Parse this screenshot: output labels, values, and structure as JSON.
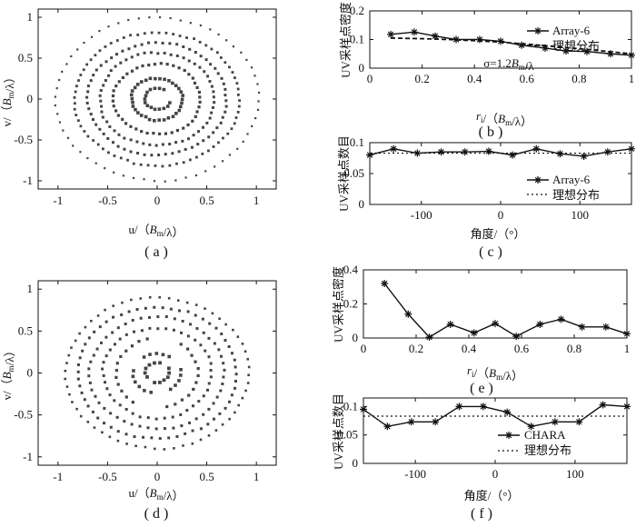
{
  "chart_data": [
    {
      "id": "a",
      "type": "scatter",
      "panel_label": "( a )",
      "xlabel": "u/（B_m/λ）",
      "ylabel": "v/（B_m/λ）",
      "xlim": [
        -1.2,
        1.2
      ],
      "ylim": [
        -1.1,
        1.1
      ],
      "xticks": [
        "-1",
        "-0.5",
        "0",
        "0.5",
        "1"
      ],
      "yticks": [
        "1",
        "0.5",
        "0",
        "-0.5",
        "-1"
      ],
      "rings": [
        {
          "r": 0.13,
          "n": 18,
          "gaps": [
            [
              0.0,
              1.0
            ]
          ],
          "msize": 3.6
        },
        {
          "r": 0.26,
          "n": 34,
          "gaps": [],
          "msize": 3.6
        },
        {
          "r": 0.44,
          "n": 44,
          "gaps": [],
          "msize": 3.2
        },
        {
          "r": 0.58,
          "n": 54,
          "gaps": [],
          "msize": 3.0
        },
        {
          "r": 0.7,
          "n": 62,
          "gaps": [],
          "msize": 3.0
        },
        {
          "r": 0.83,
          "n": 72,
          "gaps": [],
          "msize": 2.8
        },
        {
          "r": 1.02,
          "n": 60,
          "gaps": [],
          "msize": 2.2
        }
      ]
    },
    {
      "id": "b",
      "type": "line",
      "panel_label": "( b )",
      "xlabel": "r_i/（B_m/λ）",
      "ylabel": "UV采样点密度",
      "xlim": [
        0,
        1
      ],
      "ylim": [
        0,
        0.2
      ],
      "xticks": [
        0,
        0.2,
        0.4,
        0.6,
        0.8,
        1
      ],
      "yticks": [
        0,
        0.1,
        0.2
      ],
      "annotation": "σ=1.2B_m/λ",
      "series": [
        {
          "name": "Array-6",
          "style": "line-star",
          "x": [
            0.08,
            0.17,
            0.25,
            0.33,
            0.42,
            0.5,
            0.58,
            0.67,
            0.75,
            0.83,
            0.92,
            1.0
          ],
          "y": [
            0.118,
            0.126,
            0.112,
            0.1,
            0.1,
            0.094,
            0.08,
            0.07,
            0.06,
            0.058,
            0.05,
            0.045
          ]
        },
        {
          "name": "理想分布",
          "style": "dashed",
          "x": [
            0.08,
            0.2,
            0.3,
            0.4,
            0.5,
            0.6,
            0.7,
            0.8,
            0.9,
            1.0
          ],
          "y": [
            0.105,
            0.103,
            0.1,
            0.096,
            0.091,
            0.084,
            0.076,
            0.068,
            0.059,
            0.05
          ]
        }
      ]
    },
    {
      "id": "c",
      "type": "line",
      "panel_label": "( c )",
      "xlabel": "角度/（°）",
      "ylabel": "UV采样点数目",
      "xlim": [
        -165,
        165
      ],
      "ylim": [
        0,
        0.1
      ],
      "xticks": [
        -100,
        0,
        100
      ],
      "yticks": [
        0,
        0.05,
        0.1
      ],
      "series": [
        {
          "name": "Array-6",
          "style": "line-star",
          "x": [
            -165,
            -135,
            -105,
            -75,
            -45,
            -15,
            15,
            45,
            75,
            105,
            135,
            165
          ],
          "y": [
            0.08,
            0.09,
            0.083,
            0.085,
            0.085,
            0.086,
            0.08,
            0.09,
            0.082,
            0.078,
            0.085,
            0.09
          ]
        },
        {
          "name": "理想分布",
          "style": "dotted",
          "x": [
            -165,
            165
          ],
          "y": [
            0.083,
            0.083
          ]
        }
      ]
    },
    {
      "id": "d",
      "type": "scatter",
      "panel_label": "( d )",
      "xlabel": "u/（B_m/λ）",
      "ylabel": "v/（B_m/λ）",
      "xlim": [
        -1.2,
        1.2
      ],
      "ylim": [
        -1.1,
        1.1
      ],
      "xticks": [
        "-1",
        "-0.5",
        "0",
        "0.5",
        "1"
      ],
      "yticks": [
        "1",
        "0.5",
        "0",
        "-0.5",
        "-1"
      ],
      "rings": [
        {
          "r": 0.12,
          "n": 14,
          "gaps": [
            [
              0.6,
              1.3
            ],
            [
              3.6,
              4.4
            ]
          ],
          "msize": 3.8
        },
        {
          "r": 0.24,
          "n": 22,
          "gaps": [
            [
              0.2,
              0.9
            ],
            [
              2.4,
              3.0
            ],
            [
              4.6,
              5.2
            ]
          ],
          "msize": 3.6
        },
        {
          "r": 0.42,
          "n": 30,
          "gaps": [
            [
              1.1,
              1.7
            ],
            [
              4.3,
              4.9
            ]
          ],
          "msize": 3.2
        },
        {
          "r": 0.55,
          "n": 42,
          "gaps": [],
          "msize": 3.0
        },
        {
          "r": 0.68,
          "n": 50,
          "gaps": [],
          "msize": 3.0
        },
        {
          "r": 0.8,
          "n": 58,
          "gaps": [],
          "msize": 3.0
        },
        {
          "r": 0.92,
          "n": 60,
          "gaps": [],
          "msize": 2.6
        }
      ]
    },
    {
      "id": "e",
      "type": "line",
      "panel_label": "( e )",
      "xlabel": "r_i/（B_m/λ）",
      "ylabel": "UV采样点密度",
      "xlim": [
        0,
        1
      ],
      "ylim": [
        0,
        0.4
      ],
      "xticks": [
        0,
        0.2,
        0.4,
        0.6,
        0.8,
        1
      ],
      "yticks": [
        0,
        0.2,
        0.4
      ],
      "series": [
        {
          "name": "",
          "style": "line-star",
          "x": [
            0.08,
            0.17,
            0.25,
            0.33,
            0.42,
            0.5,
            0.58,
            0.67,
            0.75,
            0.83,
            0.92,
            1.0
          ],
          "y": [
            0.32,
            0.14,
            0.005,
            0.08,
            0.03,
            0.085,
            0.01,
            0.08,
            0.11,
            0.065,
            0.065,
            0.025
          ]
        }
      ]
    },
    {
      "id": "f",
      "type": "line",
      "panel_label": "( f )",
      "xlabel": "角度/（°）",
      "ylabel": "UV采样点数目",
      "xlim": [
        -165,
        165
      ],
      "ylim": [
        0,
        0.115
      ],
      "xticks": [
        -100,
        0,
        100
      ],
      "yticks": [
        0,
        0.05,
        0.1
      ],
      "series": [
        {
          "name": "CHARA",
          "style": "line-star",
          "x": [
            -165,
            -135,
            -105,
            -75,
            -45,
            -15,
            15,
            45,
            75,
            105,
            135,
            165
          ],
          "y": [
            0.095,
            0.065,
            0.073,
            0.073,
            0.1,
            0.1,
            0.09,
            0.065,
            0.073,
            0.073,
            0.103,
            0.1
          ]
        },
        {
          "name": "理想分布",
          "style": "dotted",
          "x": [
            -165,
            165
          ],
          "y": [
            0.083,
            0.083
          ]
        }
      ]
    }
  ]
}
